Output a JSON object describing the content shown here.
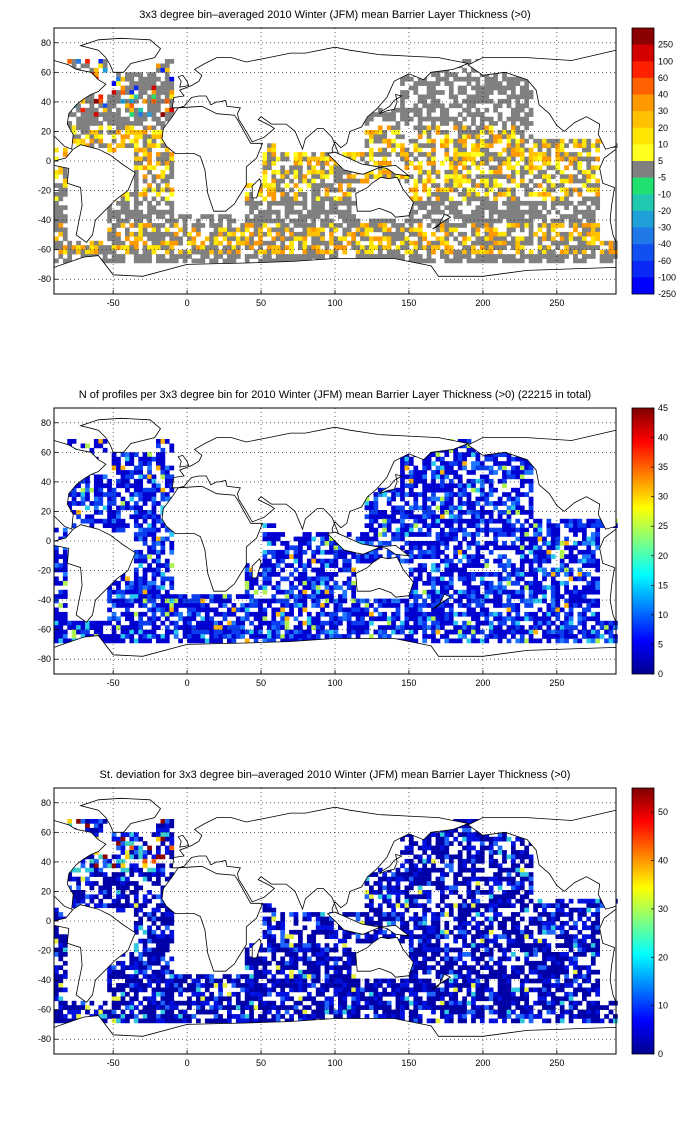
{
  "chart_data": [
    {
      "type": "heatmap",
      "title": "3x3 degree bin–averaged 2010 Winter (JFM) mean Barrier Layer Thickness (>0)",
      "xlim": [
        -90,
        290
      ],
      "ylim": [
        -90,
        90
      ],
      "xticks": [
        -50,
        0,
        50,
        100,
        150,
        200,
        250
      ],
      "yticks": [
        80,
        60,
        40,
        20,
        0,
        -20,
        -40,
        -60,
        -80
      ],
      "grid": "dotted",
      "colorbar": {
        "position": "right",
        "labels": [
          "250",
          "100",
          "60",
          "40",
          "30",
          "20",
          "10",
          "5",
          "-5",
          "-10",
          "-20",
          "-30",
          "-40",
          "-60",
          "-100",
          "-250"
        ],
        "colors": [
          "#8b0000",
          "#d40000",
          "#ff2000",
          "#ff6000",
          "#ff9900",
          "#ffc000",
          "#ffe600",
          "#ffff20",
          "#808080",
          "#20e070",
          "#20c8b0",
          "#20a0d8",
          "#1f78e8",
          "#1050f0",
          "#0a28f8",
          "#0000ff"
        ]
      }
    },
    {
      "type": "heatmap",
      "title": "N of profiles per 3x3 degree bin for 2010 Winter (JFM) mean Barrier Layer Thickness (>0) (22215 in total)",
      "xlim": [
        -90,
        290
      ],
      "ylim": [
        -90,
        90
      ],
      "xticks": [
        -50,
        0,
        50,
        100,
        150,
        200,
        250
      ],
      "yticks": [
        80,
        60,
        40,
        20,
        0,
        -20,
        -40,
        -60,
        -80
      ],
      "grid": "dotted",
      "colorbar": {
        "position": "right",
        "range": [
          0,
          45
        ],
        "ticks": [
          "45",
          "40",
          "35",
          "30",
          "25",
          "20",
          "15",
          "10",
          "5",
          "0"
        ]
      }
    },
    {
      "type": "heatmap",
      "title": "St. deviation for 3x3 degree bin–averaged 2010 Winter (JFM) mean Barrier Layer Thickness (>0)",
      "xlim": [
        -90,
        290
      ],
      "ylim": [
        -90,
        90
      ],
      "xticks": [
        -50,
        0,
        50,
        100,
        150,
        200,
        250
      ],
      "yticks": [
        80,
        60,
        40,
        20,
        0,
        -20,
        -40,
        -60,
        -80
      ],
      "grid": "dotted",
      "colorbar": {
        "position": "right",
        "range": [
          0,
          55
        ],
        "ticks": [
          "50",
          "40",
          "30",
          "20",
          "10",
          "0"
        ]
      }
    }
  ]
}
